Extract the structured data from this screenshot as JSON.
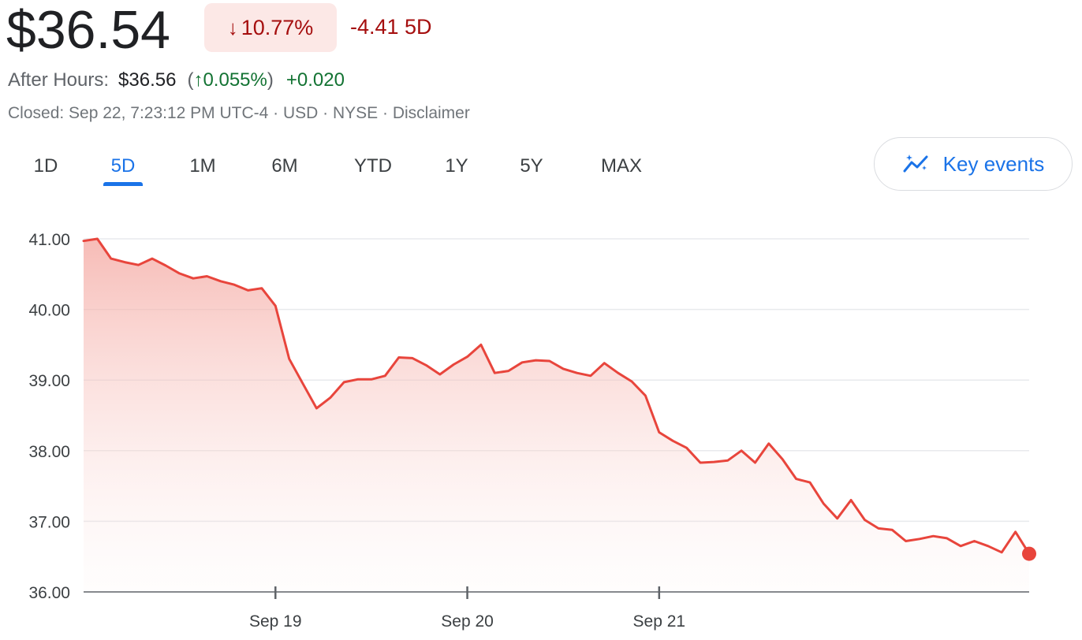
{
  "quote": {
    "price": "$36.54",
    "change_arrow": "↓",
    "change_pct": "10.77%",
    "change_abs": "-4.41 5D",
    "after_hours_label": "After Hours:",
    "after_hours_price": "$36.56",
    "after_hours_open_paren": "(",
    "after_hours_arrow": "↑",
    "after_hours_pct": "0.055%",
    "after_hours_close_paren": ")",
    "after_hours_abs": "+0.020",
    "closed_line": "Closed: Sep 22, 7:23:12 PM UTC-4 · USD · NYSE · Disclaimer"
  },
  "colors": {
    "down": "#a50e0e",
    "down_bg": "#fce8e6",
    "up": "#137333",
    "line": "#e8453c",
    "accent": "#1a73e8"
  },
  "range_tabs": [
    {
      "label": "1D",
      "active": false
    },
    {
      "label": "5D",
      "active": true
    },
    {
      "label": "1M",
      "active": false
    },
    {
      "label": "6M",
      "active": false
    },
    {
      "label": "YTD",
      "active": false
    },
    {
      "label": "1Y",
      "active": false
    },
    {
      "label": "5Y",
      "active": false
    },
    {
      "label": "MAX",
      "active": false
    }
  ],
  "key_events": {
    "label": "Key events",
    "icon": "sparkle-chart-icon"
  },
  "chart_data": {
    "type": "area",
    "y_ticks": [
      "41.00",
      "40.00",
      "39.00",
      "38.00",
      "37.00",
      "36.00"
    ],
    "ylim": [
      36.0,
      41.0
    ],
    "x_ticks": [
      {
        "label": "Sep 19",
        "index": 14
      },
      {
        "label": "Sep 20",
        "index": 28
      },
      {
        "label": "Sep 21",
        "index": 42
      }
    ],
    "grid": true,
    "series": [
      {
        "values": [
          40.97,
          41.0,
          40.72,
          40.67,
          40.63,
          40.72,
          40.62,
          40.51,
          40.44,
          40.47,
          40.4,
          40.35,
          40.27,
          40.3,
          40.05,
          39.3,
          38.95,
          38.6,
          38.75,
          38.97,
          39.01,
          39.01,
          39.06,
          39.32,
          39.31,
          39.21,
          39.08,
          39.22,
          39.33,
          39.5,
          39.1,
          39.13,
          39.25,
          39.28,
          39.27,
          39.16,
          39.1,
          39.06,
          39.24,
          39.1,
          38.98,
          38.78,
          38.26,
          38.14,
          38.04,
          37.83,
          37.84,
          37.86,
          38.0,
          37.83,
          38.1,
          37.88,
          37.6,
          37.55,
          37.25,
          37.04,
          37.3,
          37.02,
          36.9,
          36.88,
          36.72,
          36.75,
          36.79,
          36.76,
          36.65,
          36.72,
          36.65,
          36.56,
          36.85,
          36.54
        ]
      }
    ]
  }
}
